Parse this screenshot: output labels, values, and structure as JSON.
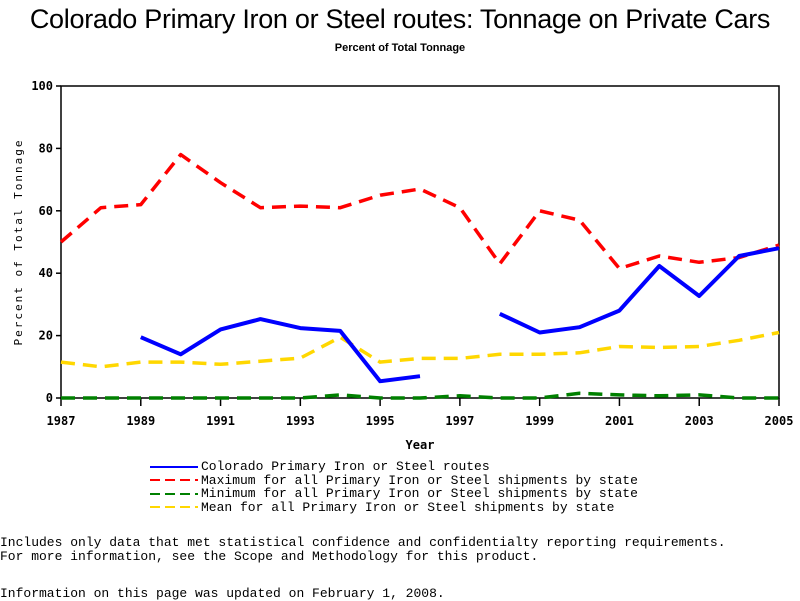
{
  "chart_data": {
    "type": "line",
    "title": "Colorado Primary Iron or Steel routes: Tonnage on Private Cars",
    "subtitle": "Percent of Total Tonnage",
    "xlabel": "Year",
    "ylabel": "Percent of Total Tonnage",
    "xlim": [
      1987,
      2005
    ],
    "ylim": [
      0,
      100
    ],
    "x_ticks": [
      "1987",
      "1989",
      "1991",
      "1993",
      "1995",
      "1997",
      "1999",
      "2001",
      "2003",
      "2005"
    ],
    "y_ticks": [
      "0",
      "20",
      "40",
      "60",
      "80",
      "100"
    ],
    "x": [
      1987,
      1988,
      1989,
      1990,
      1991,
      1992,
      1993,
      1994,
      1995,
      1996,
      1997,
      1998,
      1999,
      2000,
      2001,
      2002,
      2003,
      2004,
      2005
    ],
    "grid": false,
    "legend_position": "bottom",
    "series": [
      {
        "name": "Colorado Primary Iron or Steel routes",
        "color": "#0000ff",
        "style": "solid",
        "values": [
          null,
          null,
          19.5,
          14,
          22,
          25.3,
          22.4,
          21.5,
          5.4,
          7,
          null,
          27,
          21,
          22.7,
          28,
          42.3,
          32.7,
          45.5,
          48
        ]
      },
      {
        "name": "Maximum for all Primary Iron or Steel shipments by state",
        "color": "#ff0000",
        "style": "dashed",
        "values": [
          50,
          61,
          62,
          78,
          69,
          61,
          61.5,
          61,
          65,
          67,
          61,
          43,
          60,
          57,
          41.5,
          45.5,
          43.5,
          45,
          49
        ]
      },
      {
        "name": "Minimum for all Primary Iron or Steel shipments by state",
        "color": "#008000",
        "style": "dashed",
        "values": [
          0,
          0,
          0,
          0,
          0,
          0,
          0,
          1,
          0,
          0,
          0.7,
          0,
          0,
          1.5,
          1,
          0.7,
          1,
          0,
          0
        ]
      },
      {
        "name": "Mean for all Primary Iron or Steel shipments by state",
        "color": "#ffd700",
        "style": "dashed",
        "values": [
          11.5,
          10,
          11.5,
          11.5,
          10.8,
          11.8,
          12.8,
          19.5,
          11.5,
          12.7,
          12.7,
          14,
          14,
          14.5,
          16.5,
          16.2,
          16.5,
          18.5,
          21
        ]
      }
    ]
  },
  "notes": {
    "line1": "Includes only data that met statistical confidence and confidentialty reporting requirements.",
    "line2": "For more information, see the Scope and Methodology for this product.",
    "updated": "Information on this page was updated on February 1, 2008."
  }
}
